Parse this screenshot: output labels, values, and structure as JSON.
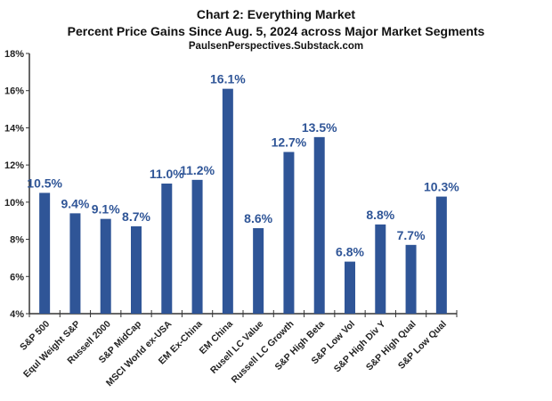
{
  "chart_data": {
    "type": "bar",
    "title": "Chart 2: Everything Market",
    "subtitle": "Percent Price Gains Since Aug. 5, 2024 across Major Market Segments",
    "source": "PaulsenPerspectives.Substack.com",
    "xlabel": "",
    "ylabel": "",
    "ylim": [
      4,
      18
    ],
    "yticks": [
      4,
      6,
      8,
      10,
      12,
      14,
      16,
      18
    ],
    "ytick_labels": [
      "4%",
      "6%",
      "8%",
      "10%",
      "12%",
      "14%",
      "16%",
      "18%"
    ],
    "categories": [
      "S&P 500",
      "Equl Weight S&P",
      "Russell 2000",
      "S&P MidCap",
      "MSCI World ex-USA",
      "EM Ex-China",
      "EM China",
      "Rusell LC Value",
      "Russell LC Growth",
      "S&P High Beta",
      "S&P Low Vol",
      "S&P High Div Y",
      "S&P High Qual",
      "S&P Low Qual"
    ],
    "values": [
      10.5,
      9.4,
      9.1,
      8.7,
      11.0,
      11.2,
      16.1,
      8.6,
      12.7,
      13.5,
      6.8,
      8.8,
      7.7,
      10.3
    ],
    "data_labels": [
      "10.5%",
      "9.4%",
      "9.1%",
      "8.7%",
      "11.0%",
      "11.2%",
      "16.1%",
      "8.6%",
      "12.7%",
      "13.5%",
      "6.8%",
      "8.8%",
      "7.7%",
      "10.3%"
    ],
    "bar_color": "#2f5597",
    "label_color": "#2f5597",
    "grid": false
  }
}
